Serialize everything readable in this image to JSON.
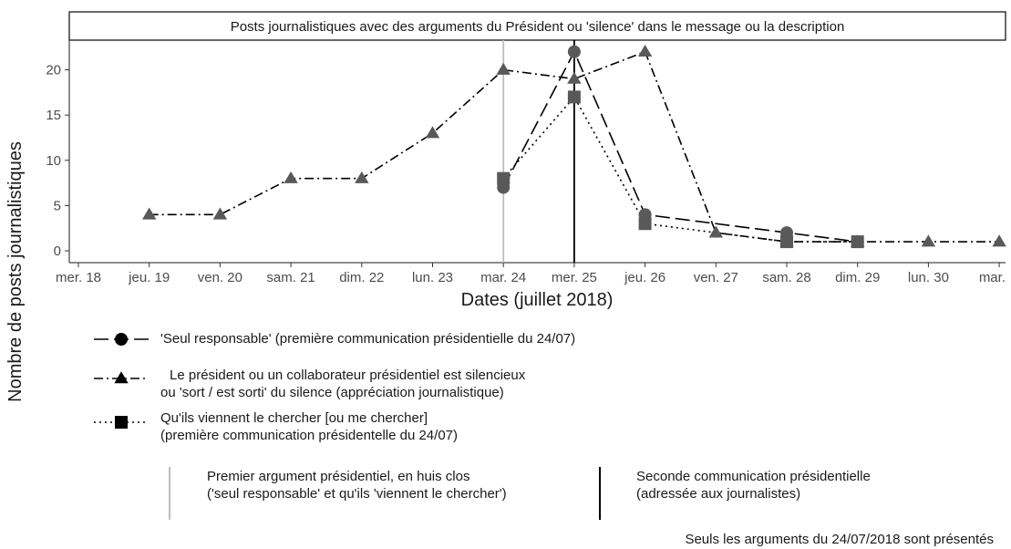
{
  "chart_data": {
    "type": "line",
    "title": "Posts journalistiques avec des arguments du Président ou 'silence' dans le message ou la description",
    "xlabel": "Dates (juillet 2018)",
    "ylabel": "Nombre de posts journalistiques",
    "categories": [
      "mer. 18",
      "jeu. 19",
      "ven. 20",
      "sam. 21",
      "dim. 22",
      "lun. 23",
      "mar. 24",
      "mer. 25",
      "jeu. 26",
      "ven. 27",
      "sam. 28",
      "dim. 29",
      "lun. 30",
      "mar."
    ],
    "ylim": [
      0,
      23
    ],
    "yticks": [
      0,
      5,
      10,
      15,
      20
    ],
    "grid": false,
    "series": [
      {
        "name": "'Seul responsable' (première communication présidentielle du 24/07)",
        "marker": "circle",
        "linestyle": "longdash",
        "points": [
          {
            "x": "mar. 24",
            "y": 7
          },
          {
            "x": "mer. 25",
            "y": 22
          },
          {
            "x": "jeu. 26",
            "y": 4
          },
          {
            "x": "sam. 28",
            "y": 2
          },
          {
            "x": "dim. 29",
            "y": 1
          }
        ]
      },
      {
        "name": "Le président ou un collaborateur présidentiel est silencieux\nou 'sort / est sorti' du silence (appréciation journalistique)",
        "marker": "triangle",
        "linestyle": "dotdash",
        "points": [
          {
            "x": "jeu. 19",
            "y": 4
          },
          {
            "x": "ven. 20",
            "y": 4
          },
          {
            "x": "sam. 21",
            "y": 8
          },
          {
            "x": "dim. 22",
            "y": 8
          },
          {
            "x": "lun. 23",
            "y": 13
          },
          {
            "x": "mar. 24",
            "y": 20
          },
          {
            "x": "mer. 25",
            "y": 19
          },
          {
            "x": "jeu. 26",
            "y": 22
          },
          {
            "x": "ven. 27",
            "y": 2
          },
          {
            "x": "sam. 28",
            "y": 1
          },
          {
            "x": "dim. 29",
            "y": 1
          },
          {
            "x": "lun. 30",
            "y": 1
          },
          {
            "x": "mar.",
            "y": 1
          }
        ]
      },
      {
        "name": "Qu'ils viennent le chercher [ou me chercher]\n(première communication présidentelle du 24/07)",
        "marker": "square",
        "linestyle": "dotted",
        "points": [
          {
            "x": "mar. 24",
            "y": 8
          },
          {
            "x": "mer. 25",
            "y": 17
          },
          {
            "x": "jeu. 26",
            "y": 3
          },
          {
            "x": "sam. 28",
            "y": 1
          },
          {
            "x": "dim. 29",
            "y": 1
          }
        ]
      }
    ],
    "vlines": [
      {
        "x": "mar. 24",
        "color": "#bebebe",
        "label": "Premier argument présidentiel, en huis clos\n('seul responsable' et qu'ils 'viennent le chercher')"
      },
      {
        "x": "mer. 25",
        "color": "#000000",
        "label": "Seconde communication présidentielle\n(adressée aux journalistes)"
      }
    ],
    "caption": "Seuls les arguments du 24/07/2018 sont présentés",
    "colors": {
      "marker": "#595959",
      "line": "#000000",
      "vline_light": "#bebebe",
      "vline_dark": "#000000"
    }
  }
}
